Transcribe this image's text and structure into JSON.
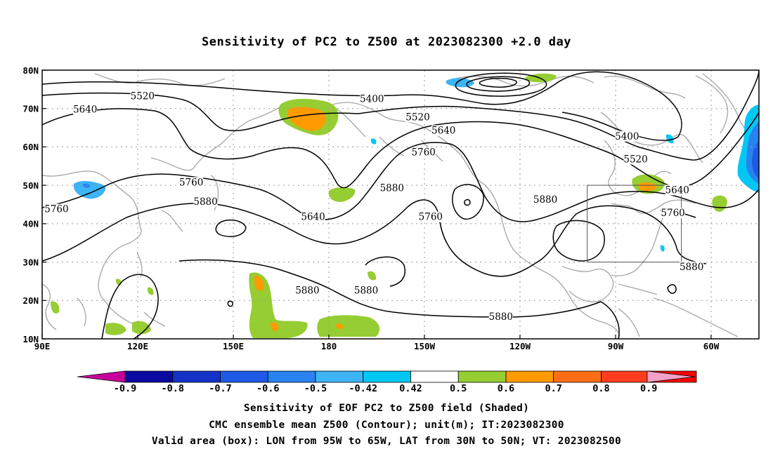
{
  "title": "Sensitivity of PC2 to Z500 at 2023082300 +2.0 day",
  "lat_ticks": [
    "80N",
    "70N",
    "60N",
    "50N",
    "40N",
    "30N",
    "20N",
    "10N"
  ],
  "lon_ticks": [
    "90E",
    "120E",
    "150E",
    "180",
    "150W",
    "120W",
    "90W",
    "60W"
  ],
  "contour_labels": [
    {
      "text": "5520",
      "lon": 125,
      "lat": 73
    },
    {
      "text": "5640",
      "lon": 105,
      "lat": 69.5
    },
    {
      "text": "5400",
      "lon": 205,
      "lat": 72.2
    },
    {
      "text": "5520",
      "lon": 221,
      "lat": 67.5
    },
    {
      "text": "5640",
      "lon": 230,
      "lat": 64
    },
    {
      "text": "5760",
      "lon": 223,
      "lat": 58.3
    },
    {
      "text": "5400",
      "lon": 294,
      "lat": 62.5
    },
    {
      "text": "5520",
      "lon": 297,
      "lat": 56.5
    },
    {
      "text": "5640",
      "lon": 311.5,
      "lat": 48.5
    },
    {
      "text": "5760",
      "lon": 310,
      "lat": 42.5
    },
    {
      "text": "5760",
      "lon": 142,
      "lat": 50.5
    },
    {
      "text": "5880",
      "lon": 147,
      "lat": 45.5
    },
    {
      "text": "5760",
      "lon": 95,
      "lat": 43.5
    },
    {
      "text": "5640",
      "lon": 184.5,
      "lat": 41.5
    },
    {
      "text": "5880",
      "lon": 212,
      "lat": 49
    },
    {
      "text": "5760",
      "lon": 225.5,
      "lat": 41.5
    },
    {
      "text": "5880",
      "lon": 265.5,
      "lat": 46
    },
    {
      "text": "5880",
      "lon": 182.5,
      "lat": 22.3
    },
    {
      "text": "5880",
      "lon": 203,
      "lat": 22.3
    },
    {
      "text": "5880",
      "lon": 250,
      "lat": 15.5
    },
    {
      "text": "5880",
      "lon": 316.5,
      "lat": 28.5
    }
  ],
  "colorbar": {
    "labels": [
      "-0.9",
      "-0.8",
      "-0.7",
      "-0.6",
      "-0.5",
      "-0.42",
      "0.42",
      "0.5",
      "0.6",
      "0.7",
      "0.8",
      "0.9"
    ],
    "colors": [
      "#c8009b",
      "#0a0aa0",
      "#1432c8",
      "#1e5ae6",
      "#2882f0",
      "#3cb4f5",
      "#00c8f5",
      "#ffffff",
      "#96cd32",
      "#ff9b00",
      "#ff6e14",
      "#ff3c1e",
      "#ff0000",
      "#f5a0c8"
    ]
  },
  "valid_box": {
    "lon_min": 265,
    "lon_max": 295,
    "lat_min": 30,
    "lat_max": 50
  },
  "captions": [
    "Sensitivity of EOF PC2 to Z500 field (Shaded)",
    "CMC ensemble mean Z500 (Contour); unit(m); IT:2023082300",
    "Valid area (box): LON from 95W to 65W, LAT from 30N to 50N; VT: 2023082500"
  ]
}
